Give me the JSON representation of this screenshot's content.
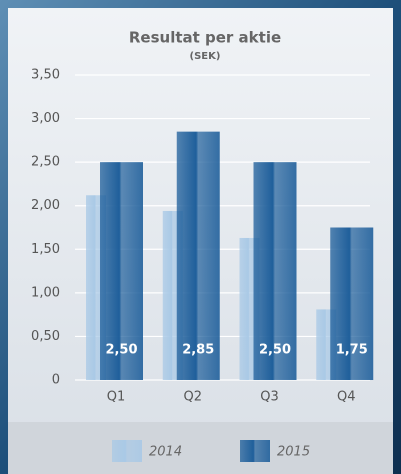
{
  "chart_data": {
    "type": "bar",
    "title": "Resultat per aktie",
    "subtitle": "(SEK)",
    "categories": [
      "Q1",
      "Q2",
      "Q3",
      "Q4"
    ],
    "series": [
      {
        "name": "2014",
        "color": "#a9c9e6",
        "values": [
          2.12,
          1.94,
          1.63,
          0.81
        ]
      },
      {
        "name": "2015",
        "color": "#1f5f9b",
        "values": [
          2.5,
          2.85,
          2.5,
          1.75
        ],
        "value_labels": [
          "2,50",
          "2,85",
          "2,50",
          "1,75"
        ]
      }
    ],
    "ylim": [
      0,
      3.5
    ],
    "yticks": [
      0,
      {
        "value": 0.5,
        "label": "0,50"
      },
      {
        "value": 1,
        "label": "1,00"
      },
      {
        "value": 1.5,
        "label": "1,50"
      },
      {
        "value": 2,
        "label": "2,00"
      },
      {
        "value": 2.5,
        "label": "2,50"
      },
      {
        "value": 3,
        "label": "3,00"
      },
      {
        "value": 3.5,
        "label": "3,50"
      }
    ],
    "grid": true
  }
}
